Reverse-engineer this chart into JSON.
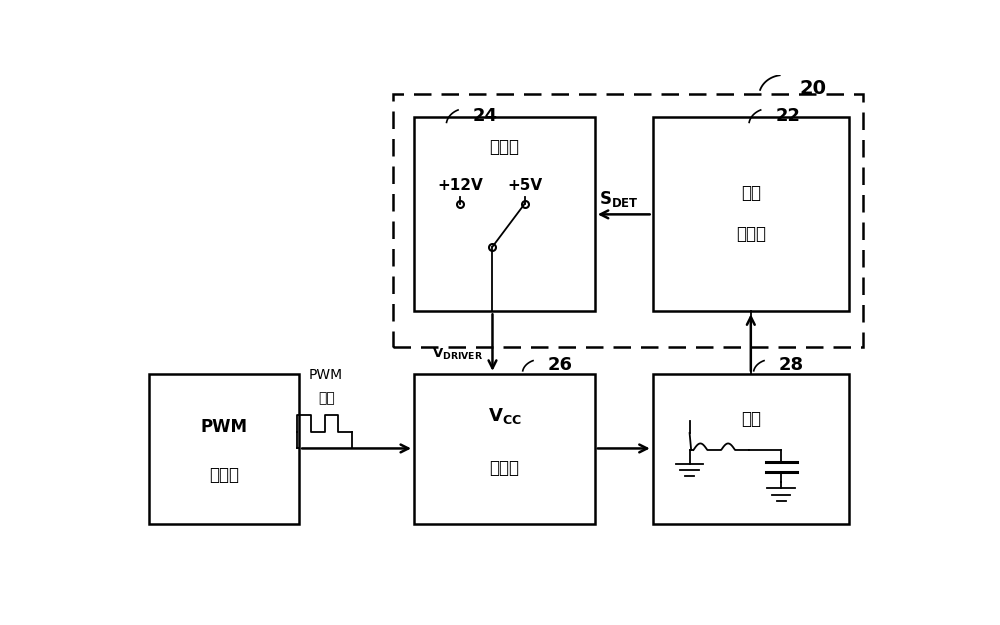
{
  "bg_color": "#ffffff",
  "fig_width": 10,
  "fig_height": 6.25,
  "dpi": 100,
  "label_20": "20",
  "label_22": "22",
  "label_24": "24",
  "label_26": "26",
  "label_28": "28",
  "t_ctrl": "控制器",
  "t_v12": "+12V",
  "t_v5": "+5V",
  "t_load_det1": "负载",
  "t_load_det2": "侦测器",
  "t_vcc": "V",
  "t_vcc_sub": "CC",
  "t_drv": "驱动器",
  "t_load": "负载",
  "t_pwm1": "PWM",
  "t_pwm2": "控制器",
  "t_pwm_sig1": "PWM",
  "t_pwm_sig2": "信號",
  "t_sdet": "S",
  "t_sdet_sub": "DET",
  "t_vdrv": "V",
  "t_vdrv_sub": "DRIVER"
}
